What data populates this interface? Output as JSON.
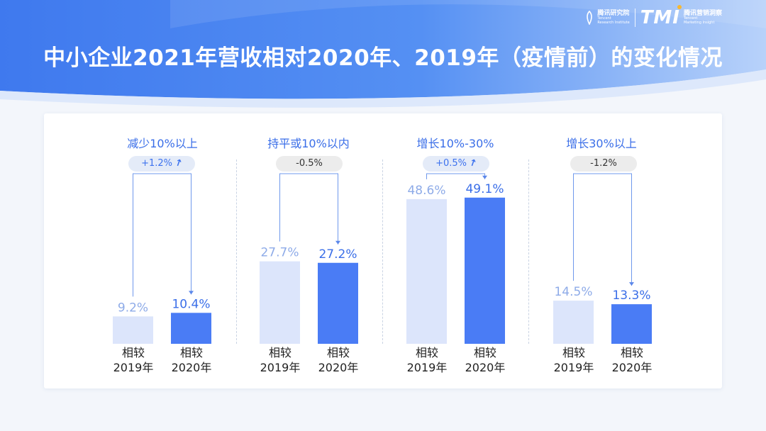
{
  "header": {
    "title": "中小企业2021年营收相对2020年、2019年（疫情前）的变化情况",
    "logo": {
      "org_cn": "腾讯研究院",
      "org_en1": "Tencent",
      "org_en2": "Research Institute",
      "brand": "TMI",
      "brand_cn": "腾讯营销洞察",
      "brand_en1": "Tencent",
      "brand_en2": "Marketing Insight"
    }
  },
  "colors": {
    "header_blue": "#4a82f0",
    "bar_2019": "#dce5fb",
    "bar_2020": "#4a7cf5",
    "label_2019": "#8eabe8",
    "label_2020": "#3a6ee8"
  },
  "chart_data": {
    "type": "bar",
    "series_names": [
      "相较2019年",
      "相较2020年"
    ],
    "groups": [
      {
        "title": "减少10%以上",
        "change": "+1.2%",
        "direction": "up",
        "values": [
          9.2,
          10.4
        ],
        "value_labels": [
          "9.2%",
          "10.4%"
        ],
        "bar_labels": [
          [
            "相较",
            "2019年"
          ],
          [
            "相较",
            "2020年"
          ]
        ]
      },
      {
        "title": "持平或10%以内",
        "change": "-0.5%",
        "direction": "down",
        "values": [
          27.7,
          27.2
        ],
        "value_labels": [
          "27.7%",
          "27.2%"
        ],
        "bar_labels": [
          [
            "相较",
            "2019年"
          ],
          [
            "相较",
            "2020年"
          ]
        ]
      },
      {
        "title": "增长10%-30%",
        "change": "+0.5%",
        "direction": "up",
        "values": [
          48.6,
          49.1
        ],
        "value_labels": [
          "48.6%",
          "49.1%"
        ],
        "bar_labels": [
          [
            "相较",
            "2019年"
          ],
          [
            "相较",
            "2020年"
          ]
        ]
      },
      {
        "title": "增长30%以上",
        "change": "-1.2%",
        "direction": "down",
        "values": [
          14.5,
          13.3
        ],
        "value_labels": [
          "14.5%",
          "13.3%"
        ],
        "bar_labels": [
          [
            "相较",
            "2019年"
          ],
          [
            "相较",
            "2020年"
          ]
        ]
      }
    ],
    "ylim": [
      0,
      50
    ]
  }
}
